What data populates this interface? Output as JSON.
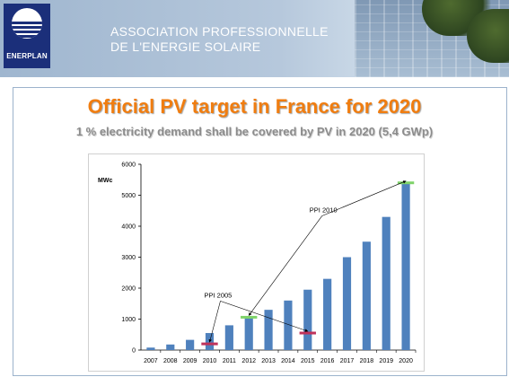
{
  "header": {
    "logo_text": "ENERPLAN",
    "org_line1": "ASSOCIATION PROFESSIONNELLE",
    "org_line2": "DE L'ENERGIE SOLAIRE"
  },
  "slide": {
    "title": "Official PV target in France for 2020",
    "subtitle": "1 % electricity demand shall be covered by PV in 2020 (5,4 GWp)"
  },
  "colors": {
    "title": "#f07d10",
    "bar": "#4f81bd",
    "ppi2005_marker": "#c0325a",
    "ppi2010_marker": "#7fd36a"
  },
  "chart_data": {
    "type": "bar",
    "title": "",
    "xlabel": "",
    "ylabel": "MWc",
    "categories": [
      "2007",
      "2008",
      "2009",
      "2010",
      "2011",
      "2012",
      "2013",
      "2014",
      "2015",
      "2016",
      "2017",
      "2018",
      "2019",
      "2020"
    ],
    "values": [
      80,
      180,
      330,
      550,
      800,
      1050,
      1300,
      1600,
      1950,
      2300,
      3000,
      3500,
      4300,
      5400
    ],
    "ylim": [
      0,
      6000
    ],
    "yticks": [
      0,
      1000,
      2000,
      3000,
      4000,
      5000,
      6000
    ],
    "grid": false,
    "legend": "none",
    "annotations": [
      {
        "label": "PPI 2005",
        "markers": [
          {
            "x": "2010",
            "y": 200
          },
          {
            "x": "2015",
            "y": 550
          }
        ]
      },
      {
        "label": "PPI 2010",
        "markers": [
          {
            "x": "2012",
            "y": 1060
          },
          {
            "x": "2020",
            "y": 5400
          }
        ]
      }
    ]
  }
}
